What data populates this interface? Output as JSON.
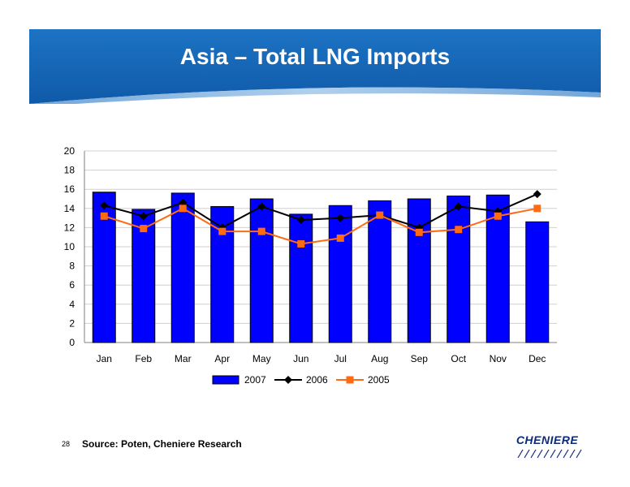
{
  "slide": {
    "title": "Asia – Total LNG Imports",
    "page_number": "28",
    "source": "Source: Poten, Cheniere Research",
    "logo_text": "CHENIERE",
    "banner_color": "#1769b8"
  },
  "chart_data": {
    "type": "bar",
    "title": "",
    "xlabel": "",
    "ylabel": "",
    "categories": [
      "Jan",
      "Feb",
      "Mar",
      "Apr",
      "May",
      "Jun",
      "Jul",
      "Aug",
      "Sep",
      "Oct",
      "Nov",
      "Dec"
    ],
    "ylim": [
      0,
      20
    ],
    "yticks": [
      0,
      2,
      4,
      6,
      8,
      10,
      12,
      14,
      16,
      18,
      20
    ],
    "grid": true,
    "legend_position": "bottom",
    "series": [
      {
        "name": "2007",
        "type": "bar",
        "color": "#0000ff",
        "values": [
          15.7,
          13.9,
          15.6,
          14.2,
          15.0,
          13.4,
          14.3,
          14.8,
          15.0,
          15.3,
          15.4,
          12.6
        ]
      },
      {
        "name": "2006",
        "type": "line",
        "marker": "diamond",
        "color": "#000000",
        "values": [
          14.3,
          13.2,
          14.6,
          12.0,
          14.2,
          12.8,
          13.0,
          13.3,
          12.0,
          14.2,
          13.7,
          15.5
        ]
      },
      {
        "name": "2005",
        "type": "line",
        "marker": "square",
        "color": "#ff6a13",
        "values": [
          13.2,
          11.9,
          14.0,
          11.6,
          11.6,
          10.3,
          10.9,
          13.3,
          11.5,
          11.8,
          13.2,
          14.0
        ]
      }
    ]
  }
}
